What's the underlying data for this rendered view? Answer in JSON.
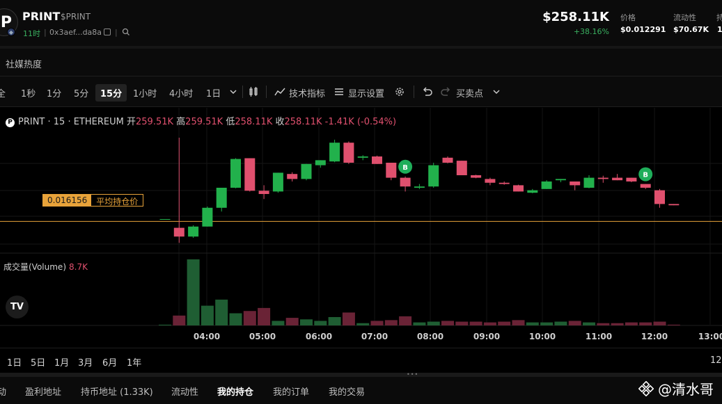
{
  "header": {
    "logo_letter": "P",
    "token_name": "PRINT",
    "token_ticker": "$PRINT",
    "age": "11时",
    "address": "0x3aef...da8a",
    "market_cap": "$258.11K",
    "market_cap_change": "+38.16%",
    "stats": [
      {
        "label": "价格",
        "value": "$0.012291"
      },
      {
        "label": "流动性",
        "value": "$70.67K"
      },
      {
        "label": "持",
        "value": "1"
      }
    ]
  },
  "social": {
    "title": "社媒热度"
  },
  "toolbar": {
    "left_cut": "全",
    "intervals": [
      "1秒",
      "1分",
      "5分",
      "15分",
      "1小时",
      "4小时",
      "1日"
    ],
    "active_interval": "15分",
    "indicators_label": "技术指标",
    "display_label": "显示设置",
    "trade_points_label": "买卖点"
  },
  "chart": {
    "legend": {
      "symbol": "PRINT · 15 · ETHEREUM",
      "open_label": "开",
      "open": "259.51K",
      "high_label": "高",
      "high": "259.51K",
      "low_label": "低",
      "low": "258.11K",
      "close_label": "收",
      "close": "258.11K",
      "change": "-1.41K (-0.54%)"
    },
    "avg_position_price": "0.016156",
    "avg_position_label": "平均持仓价",
    "volume_label": "成交量(Volume)",
    "volume_value": "8.7K",
    "tv_logo": "TV",
    "buy_marker": "B"
  },
  "chart_data": {
    "type": "candlestick",
    "time_labels": [
      "04:00",
      "05:00",
      "06:00",
      "07:00",
      "08:00",
      "09:00",
      "10:00",
      "11:00",
      "12:00",
      "13:00"
    ],
    "candles": [
      {
        "o": 0.01625,
        "h": 0.01625,
        "l": 0.01625,
        "c": 0.01625
      },
      {
        "o": 0.0159,
        "h": 0.0195,
        "l": 0.0153,
        "c": 0.01555
      },
      {
        "o": 0.01555,
        "h": 0.016,
        "l": 0.0155,
        "c": 0.01595
      },
      {
        "o": 0.01595,
        "h": 0.01675,
        "l": 0.01595,
        "c": 0.0167
      },
      {
        "o": 0.0167,
        "h": 0.0175,
        "l": 0.01655,
        "c": 0.0175
      },
      {
        "o": 0.0175,
        "h": 0.01868,
        "l": 0.01748,
        "c": 0.01865
      },
      {
        "o": 0.01868,
        "h": 0.01868,
        "l": 0.01735,
        "c": 0.01738
      },
      {
        "o": 0.01738,
        "h": 0.0176,
        "l": 0.01705,
        "c": 0.01725
      },
      {
        "o": 0.01735,
        "h": 0.0181,
        "l": 0.0173,
        "c": 0.0181
      },
      {
        "o": 0.01805,
        "h": 0.01812,
        "l": 0.01775,
        "c": 0.01785
      },
      {
        "o": 0.01785,
        "h": 0.01845,
        "l": 0.0178,
        "c": 0.01845
      },
      {
        "o": 0.0184,
        "h": 0.0186,
        "l": 0.0183,
        "c": 0.0186
      },
      {
        "o": 0.01855,
        "h": 0.01942,
        "l": 0.01852,
        "c": 0.0193
      },
      {
        "o": 0.0193,
        "h": 0.01935,
        "l": 0.01845,
        "c": 0.0185
      },
      {
        "o": 0.0187,
        "h": 0.0188,
        "l": 0.0186,
        "c": 0.01875
      },
      {
        "o": 0.01875,
        "h": 0.01878,
        "l": 0.01845,
        "c": 0.01845
      },
      {
        "o": 0.0185,
        "h": 0.0185,
        "l": 0.0178,
        "c": 0.0179
      },
      {
        "o": 0.0179,
        "h": 0.01795,
        "l": 0.01735,
        "c": 0.01755
      },
      {
        "o": 0.0175,
        "h": 0.01765,
        "l": 0.01745,
        "c": 0.01755
      },
      {
        "o": 0.01755,
        "h": 0.0185,
        "l": 0.0175,
        "c": 0.0184
      },
      {
        "o": 0.0187,
        "h": 0.01875,
        "l": 0.01848,
        "c": 0.0185
      },
      {
        "o": 0.01858,
        "h": 0.01858,
        "l": 0.018,
        "c": 0.018
      },
      {
        "o": 0.018,
        "h": 0.01802,
        "l": 0.01788,
        "c": 0.0179
      },
      {
        "o": 0.01785,
        "h": 0.0179,
        "l": 0.0176,
        "c": 0.0177
      },
      {
        "o": 0.0177,
        "h": 0.01775,
        "l": 0.01762,
        "c": 0.01765
      },
      {
        "o": 0.0176,
        "h": 0.01762,
        "l": 0.01735,
        "c": 0.01735
      },
      {
        "o": 0.0173,
        "h": 0.01745,
        "l": 0.01728,
        "c": 0.0174
      },
      {
        "o": 0.01745,
        "h": 0.0178,
        "l": 0.01745,
        "c": 0.01775
      },
      {
        "o": 0.0178,
        "h": 0.01785,
        "l": 0.01772,
        "c": 0.01785
      },
      {
        "o": 0.01775,
        "h": 0.01775,
        "l": 0.0174,
        "c": 0.0176
      },
      {
        "o": 0.0175,
        "h": 0.018,
        "l": 0.01748,
        "c": 0.0179
      },
      {
        "o": 0.0179,
        "h": 0.01798,
        "l": 0.0177,
        "c": 0.01785
      },
      {
        "o": 0.0179,
        "h": 0.01805,
        "l": 0.0178,
        "c": 0.0178
      },
      {
        "o": 0.0179,
        "h": 0.0179,
        "l": 0.01772,
        "c": 0.01775
      },
      {
        "o": 0.01765,
        "h": 0.01765,
        "l": 0.01745,
        "c": 0.0175
      },
      {
        "o": 0.0174,
        "h": 0.01745,
        "l": 0.0167,
        "c": 0.01685
      },
      {
        "o": 0.01685,
        "h": 0.01685,
        "l": 0.0168,
        "c": 0.0168
      }
    ],
    "volumes": [
      0.1,
      1.3,
      8.7,
      2.6,
      3.4,
      1.6,
      1.9,
      2.3,
      0.6,
      1.0,
      0.8,
      0.6,
      1.1,
      1.7,
      0.3,
      0.6,
      0.7,
      1.2,
      0.4,
      0.5,
      0.6,
      0.5,
      0.5,
      0.4,
      0.5,
      0.7,
      0.4,
      0.4,
      0.5,
      0.6,
      0.4,
      0.3,
      0.3,
      0.4,
      0.4,
      0.5,
      0.1
    ],
    "buy_markers": [
      {
        "index": 17
      },
      {
        "index": 34
      }
    ],
    "ylim": [
      0.015,
      0.02
    ],
    "avg_line": 0.016156
  },
  "range_bar": {
    "ranges": [
      "1日",
      "5日",
      "1月",
      "3月",
      "6月",
      "1年"
    ],
    "right_cut": "12"
  },
  "bottom_tabs": {
    "tabs": [
      "动",
      "盈利地址",
      "持币地址 (1.33K)",
      "流动性",
      "我的持仓",
      "我的订单",
      "我的交易"
    ],
    "active": "我的持仓",
    "watermark": "@清水哥"
  },
  "colors": {
    "up": "#22b14c",
    "down": "#e0506e",
    "avg_line": "#e8a33a",
    "buy_marker": "#1fae5a"
  }
}
